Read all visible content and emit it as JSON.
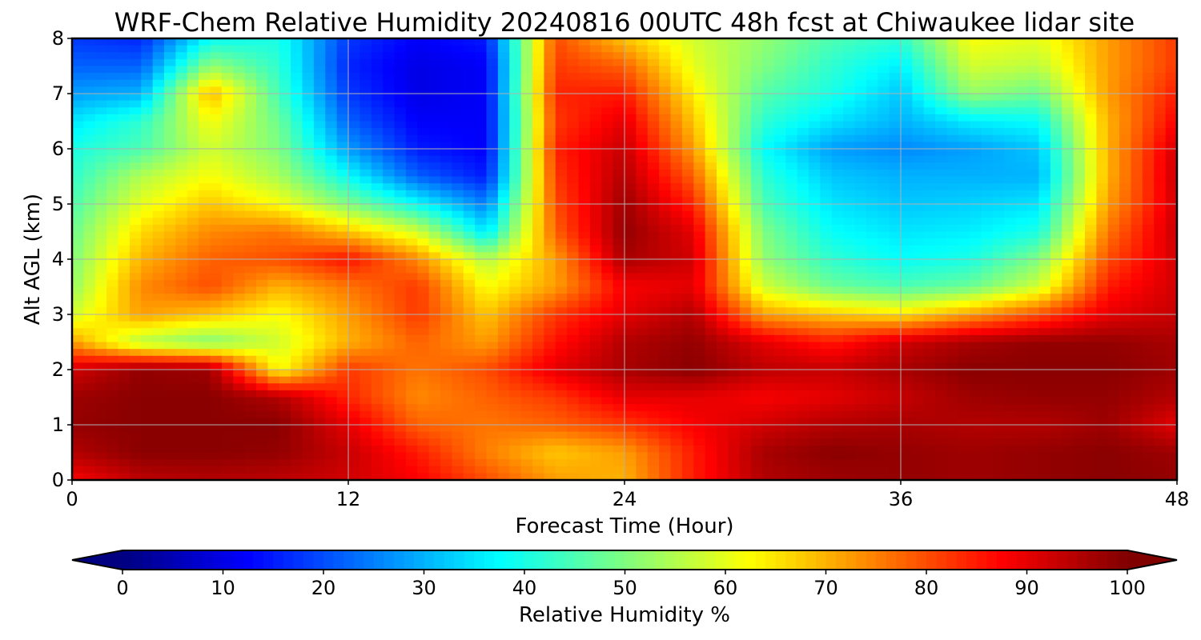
{
  "chart_data": {
    "type": "heatmap",
    "title": "WRF-Chem Relative Humidity 20240816 00UTC 48h fcst at Chiwaukee lidar site",
    "xlabel": "Forecast Time (Hour)",
    "ylabel": "Alt AGL (km)",
    "xlim": [
      0,
      48
    ],
    "ylim": [
      0,
      8
    ],
    "xticks": [
      "0",
      "12",
      "24",
      "36",
      "48"
    ],
    "yticks": [
      "0",
      "1",
      "2",
      "3",
      "4",
      "5",
      "6",
      "7",
      "8"
    ],
    "grid": true,
    "colormap": "jet",
    "colorbar": {
      "label": "Relative Humidity %",
      "range": [
        0,
        100
      ],
      "ticks": [
        "0",
        "10",
        "20",
        "30",
        "40",
        "50",
        "60",
        "70",
        "80",
        "90",
        "100"
      ],
      "extend": "both",
      "placement": "bottom"
    },
    "x": [
      0,
      3,
      6,
      9,
      12,
      15,
      18,
      21,
      24,
      27,
      30,
      33,
      36,
      39,
      42,
      45,
      48
    ],
    "y": [
      0,
      0.5,
      1,
      1.5,
      2,
      2.5,
      3,
      3.5,
      4,
      4.5,
      5,
      5.5,
      6,
      6.5,
      7,
      7.5,
      8
    ],
    "values": [
      [
        88,
        94,
        95,
        94,
        92,
        88,
        80,
        72,
        70,
        85,
        95,
        97,
        98,
        97,
        98,
        99,
        98
      ],
      [
        95,
        99,
        99,
        98,
        93,
        85,
        75,
        68,
        72,
        85,
        96,
        99,
        98,
        97,
        98,
        99,
        97
      ],
      [
        98,
        99,
        99,
        99,
        90,
        78,
        76,
        78,
        82,
        88,
        92,
        95,
        96,
        95,
        95,
        97,
        90
      ],
      [
        97,
        99,
        99,
        95,
        84,
        74,
        78,
        82,
        90,
        90,
        88,
        90,
        93,
        97,
        98,
        98,
        95
      ],
      [
        92,
        98,
        97,
        62,
        82,
        76,
        80,
        90,
        96,
        99,
        94,
        93,
        96,
        99,
        99,
        99,
        97
      ],
      [
        72,
        55,
        50,
        58,
        70,
        78,
        72,
        86,
        95,
        98,
        90,
        85,
        92,
        96,
        98,
        98,
        96
      ],
      [
        58,
        72,
        68,
        62,
        72,
        82,
        68,
        82,
        90,
        95,
        72,
        68,
        65,
        72,
        80,
        90,
        93
      ],
      [
        52,
        74,
        80,
        70,
        76,
        82,
        62,
        72,
        88,
        90,
        58,
        48,
        45,
        48,
        58,
        85,
        92
      ],
      [
        50,
        70,
        78,
        80,
        86,
        74,
        55,
        72,
        96,
        92,
        52,
        42,
        38,
        40,
        50,
        80,
        92
      ],
      [
        48,
        66,
        74,
        76,
        68,
        58,
        35,
        78,
        98,
        90,
        50,
        38,
        35,
        36,
        40,
        76,
        93
      ],
      [
        45,
        60,
        68,
        62,
        50,
        38,
        25,
        80,
        97,
        84,
        45,
        35,
        32,
        33,
        35,
        72,
        92
      ],
      [
        42,
        55,
        62,
        54,
        38,
        22,
        15,
        82,
        95,
        78,
        42,
        32,
        30,
        30,
        30,
        70,
        93
      ],
      [
        40,
        45,
        58,
        50,
        28,
        15,
        12,
        84,
        93,
        72,
        38,
        28,
        26,
        28,
        32,
        70,
        92
      ],
      [
        35,
        42,
        62,
        48,
        22,
        12,
        12,
        82,
        90,
        68,
        42,
        35,
        30,
        36,
        38,
        70,
        88
      ],
      [
        28,
        30,
        70,
        44,
        18,
        10,
        12,
        84,
        85,
        64,
        46,
        40,
        32,
        52,
        48,
        72,
        85
      ],
      [
        22,
        22,
        52,
        42,
        16,
        10,
        12,
        82,
        78,
        60,
        50,
        42,
        36,
        58,
        56,
        72,
        82
      ],
      [
        18,
        16,
        38,
        40,
        18,
        12,
        15,
        80,
        68,
        58,
        52,
        45,
        42,
        62,
        60,
        72,
        82
      ]
    ]
  }
}
